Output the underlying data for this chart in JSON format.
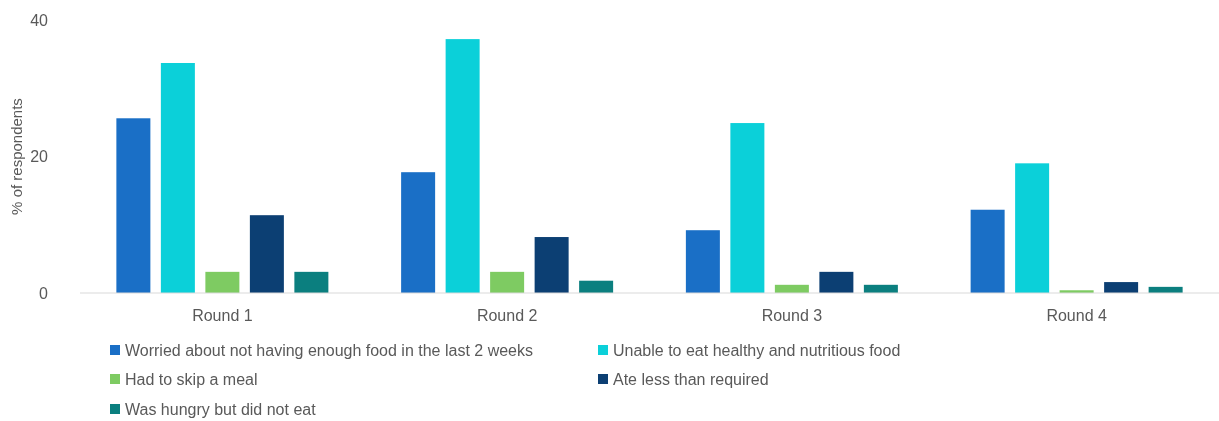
{
  "chart_data": {
    "type": "bar",
    "ylabel": "% of respondents",
    "categories": [
      "Round 1",
      "Round 2",
      "Round 3",
      "Round 4"
    ],
    "series": [
      {
        "name": "Worried about not having enough food in the last 2 weeks",
        "color": "#1a6fc6",
        "values": [
          25.6,
          17.7,
          9.2,
          12.2
        ]
      },
      {
        "name": "Unable to eat healthy and nutritious food",
        "color": "#0bd0d9",
        "values": [
          33.7,
          37.2,
          24.9,
          19.0
        ]
      },
      {
        "name": "Had to skip a meal",
        "color": "#7ecb62",
        "values": [
          3.1,
          3.1,
          1.2,
          0.4
        ]
      },
      {
        "name": "Ate less than required",
        "color": "#0c3f73",
        "values": [
          11.4,
          8.2,
          3.1,
          1.6
        ]
      },
      {
        "name": "Was hungry but did not eat",
        "color": "#0b7f7f",
        "values": [
          3.1,
          1.8,
          1.2,
          0.9
        ]
      }
    ],
    "ylim": [
      0,
      40
    ],
    "yticks": [
      0,
      20,
      40
    ],
    "grid": false,
    "legend": "bottom"
  }
}
